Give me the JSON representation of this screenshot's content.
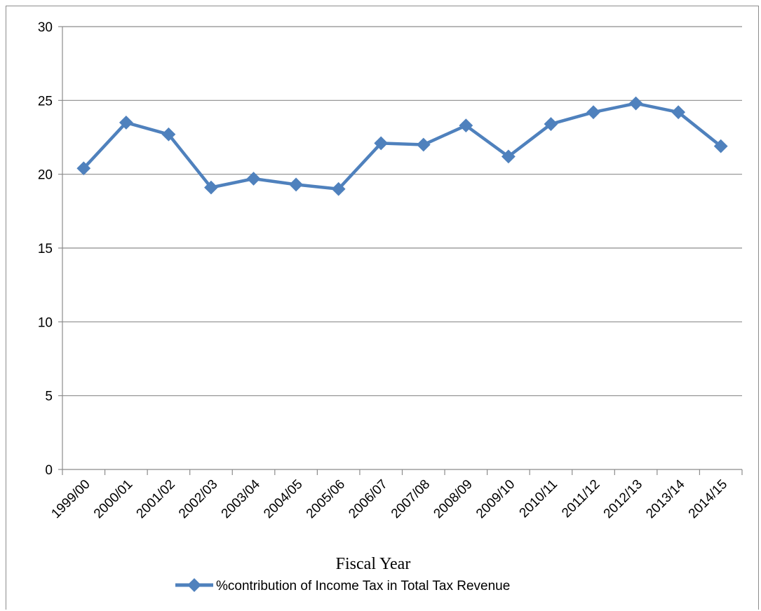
{
  "chart_data": {
    "type": "line",
    "title": "",
    "xlabel": "Fiscal Year",
    "ylabel": "",
    "ylim": [
      0,
      30
    ],
    "yticks": [
      0,
      5,
      10,
      15,
      20,
      25,
      30
    ],
    "grid": true,
    "legend_position": "bottom",
    "categories": [
      "1999/00",
      "2000/01",
      "2001/02",
      "2002/03",
      "2003/04",
      "2004/05",
      "2005/06",
      "2006/07",
      "2007/08",
      "2008/09",
      "2009/10",
      "2010/11",
      "2011/12",
      "2012/13",
      "2013/14",
      "2014/15"
    ],
    "series": [
      {
        "name": "%contribution of Income Tax in Total Tax Revenue",
        "color": "#4f81bd",
        "values": [
          20.4,
          23.5,
          22.7,
          19.1,
          19.7,
          19.3,
          19.0,
          22.1,
          22.0,
          23.3,
          21.2,
          23.4,
          24.2,
          24.8,
          24.2,
          21.9
        ]
      }
    ]
  }
}
